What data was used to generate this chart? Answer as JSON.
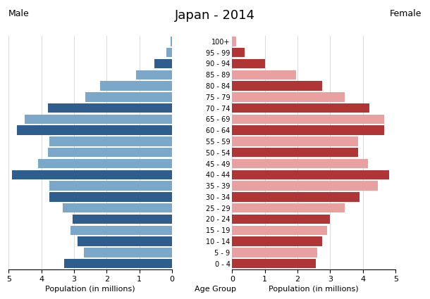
{
  "title": "Japan - 2014",
  "age_groups": [
    "100+",
    "95 - 99",
    "90 - 94",
    "85 - 89",
    "80 - 84",
    "75 - 79",
    "70 - 74",
    "65 - 69",
    "60 - 64",
    "55 - 59",
    "50 - 54",
    "45 - 49",
    "40 - 44",
    "35 - 39",
    "30 - 34",
    "25 - 29",
    "20 - 24",
    "15 - 19",
    "10 - 14",
    "5 - 9",
    "0 - 4"
  ],
  "male_values": [
    0.05,
    0.18,
    0.55,
    1.1,
    2.2,
    2.65,
    3.8,
    4.5,
    4.75,
    3.75,
    3.8,
    4.1,
    4.9,
    3.75,
    3.75,
    3.35,
    3.05,
    3.1,
    2.9,
    2.7,
    3.3
  ],
  "female_values": [
    0.13,
    0.38,
    1.0,
    1.95,
    2.75,
    3.45,
    4.2,
    4.65,
    4.65,
    3.85,
    3.85,
    4.15,
    4.8,
    4.45,
    3.9,
    3.45,
    3.0,
    2.9,
    2.75,
    2.6,
    2.55
  ],
  "male_dark": [
    false,
    false,
    true,
    false,
    false,
    false,
    true,
    false,
    true,
    false,
    false,
    false,
    true,
    false,
    true,
    false,
    true,
    false,
    true,
    false,
    true
  ],
  "female_dark": [
    false,
    true,
    true,
    false,
    true,
    false,
    true,
    false,
    true,
    false,
    true,
    false,
    true,
    false,
    true,
    false,
    true,
    false,
    true,
    false,
    true
  ],
  "male_color_light": "#7ba7c9",
  "male_color_dark": "#2e5d8e",
  "female_color_light": "#e8a0a0",
  "female_color_dark": "#b03535",
  "xlabel_left": "Population (in millions)",
  "xlabel_center": "Age Group",
  "xlabel_right": "Population (in millions)",
  "label_male": "Male",
  "label_female": "Female",
  "xlim": 5,
  "background_color": "#ffffff",
  "grid_color": "#cccccc"
}
